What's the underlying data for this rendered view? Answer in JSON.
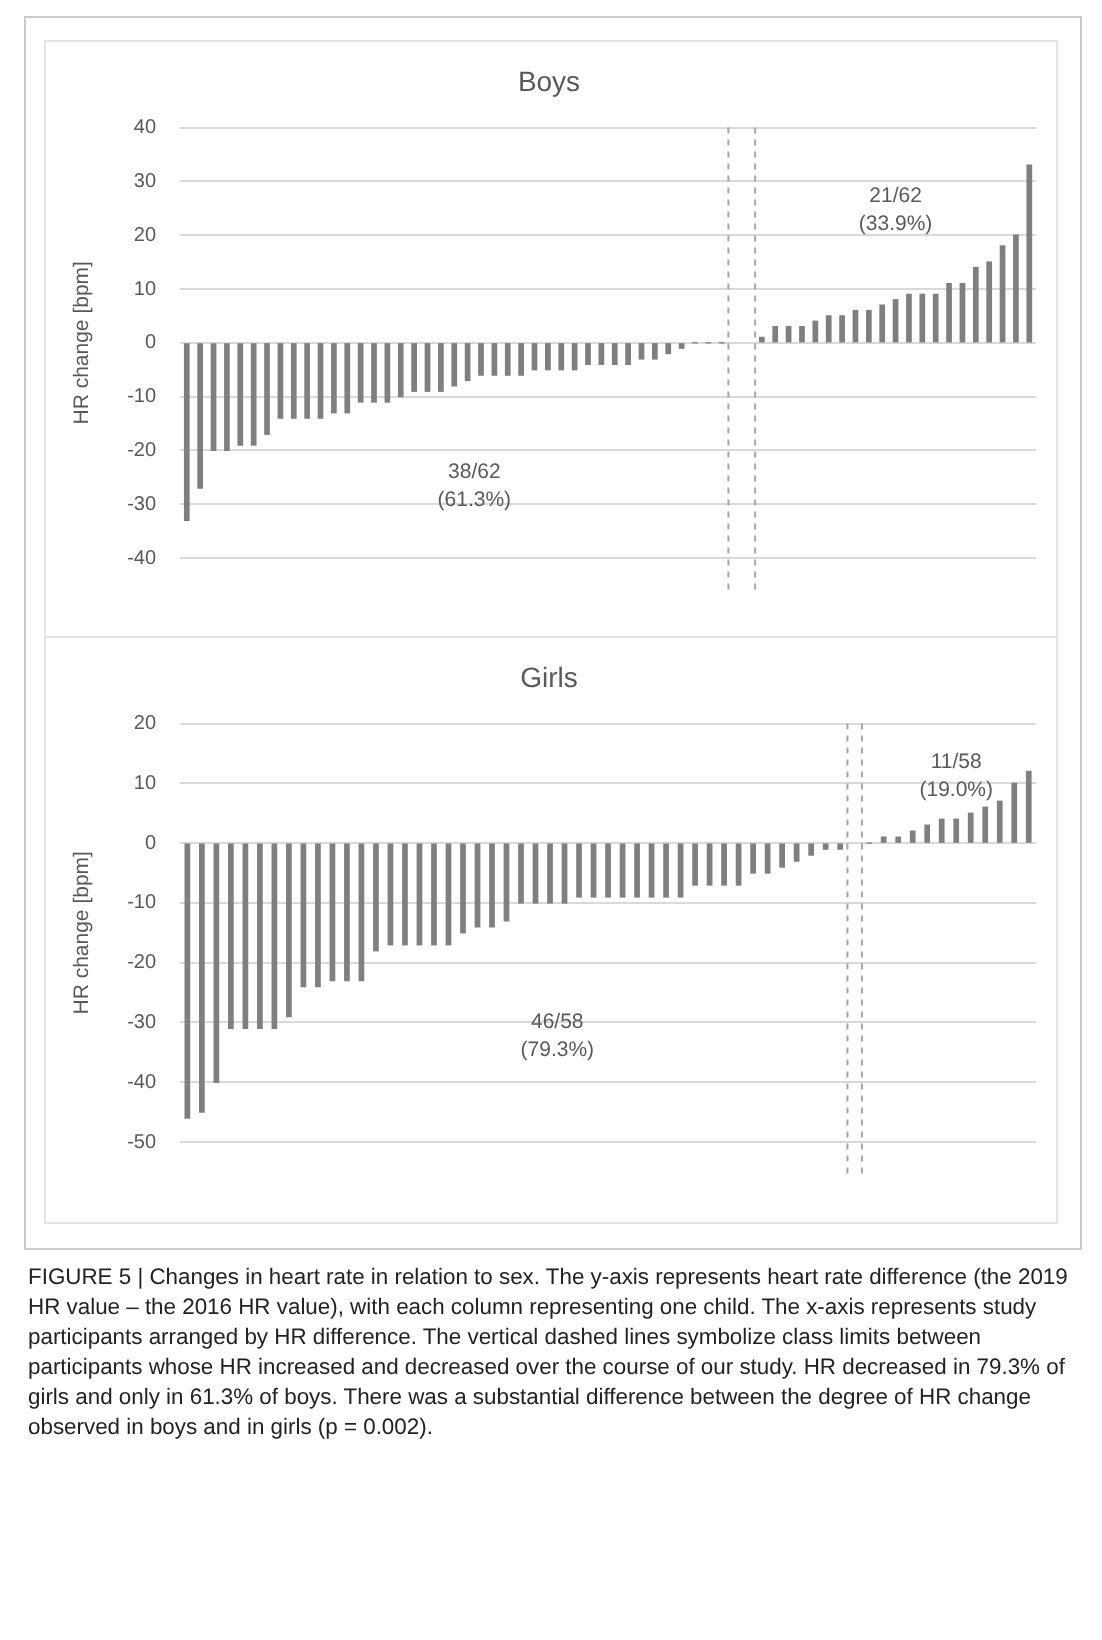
{
  "chart_data": [
    {
      "type": "bar",
      "title": "Boys",
      "ylabel": "HR change [bpm]",
      "color": "#7f7f7f",
      "tick_labels": "y",
      "grid": "y",
      "categories": [
        null,
        null,
        null,
        null,
        null,
        null,
        null,
        null,
        null,
        null,
        null,
        null,
        null,
        null,
        null,
        null,
        null,
        null,
        null,
        null,
        null,
        null,
        null,
        null,
        null,
        null,
        null,
        null,
        null,
        null,
        null,
        null,
        null,
        null,
        null,
        null,
        null,
        null,
        null,
        null,
        null,
        null,
        null,
        null,
        null,
        null,
        null,
        null,
        null,
        null,
        null,
        null,
        null,
        null,
        null,
        null,
        null,
        null,
        null,
        null,
        null,
        null,
        null,
        null
      ],
      "values": [
        -33,
        -27,
        -20,
        -20,
        -19,
        -19,
        -17,
        -14,
        -14,
        -14,
        -14,
        -13,
        -13,
        -11,
        -11,
        -11,
        -10,
        -9,
        -9,
        -9,
        -8,
        -7,
        -6,
        -6,
        -6,
        -6,
        -5,
        -5,
        -5,
        -5,
        -4,
        -4,
        -4,
        -4,
        -3,
        -3,
        -2,
        -1,
        0,
        0,
        0,
        null,
        null,
        1,
        3,
        3,
        3,
        4,
        5,
        5,
        6,
        6,
        7,
        8,
        9,
        9,
        9,
        11,
        11,
        14,
        15,
        18,
        20,
        33
      ],
      "ylim": [
        -40,
        40
      ],
      "yticks": [
        -40,
        -30,
        -20,
        -10,
        0,
        10,
        20,
        30,
        40
      ],
      "ref_lines": [
        {
          "axis": "x",
          "color": "#a6a6a6",
          "line_style": "dashed"
        },
        {
          "axis": "x",
          "color": "#a6a6a6",
          "line_style": "dashed"
        }
      ],
      "annotations": [
        "38/62\n(61.3%)",
        "21/62\n(33.9%)"
      ]
    },
    {
      "type": "bar",
      "title": "Girls",
      "ylabel": "HR change [bpm]",
      "color": "#7f7f7f",
      "tick_labels": "y",
      "grid": "y",
      "categories": [
        null,
        null,
        null,
        null,
        null,
        null,
        null,
        null,
        null,
        null,
        null,
        null,
        null,
        null,
        null,
        null,
        null,
        null,
        null,
        null,
        null,
        null,
        null,
        null,
        null,
        null,
        null,
        null,
        null,
        null,
        null,
        null,
        null,
        null,
        null,
        null,
        null,
        null,
        null,
        null,
        null,
        null,
        null,
        null,
        null,
        null,
        null,
        null,
        null,
        null,
        null,
        null,
        null,
        null,
        null,
        null,
        null,
        null,
        null
      ],
      "values": [
        -46,
        -45,
        -40,
        -31,
        -31,
        -31,
        -31,
        -29,
        -24,
        -24,
        -23,
        -23,
        -23,
        -18,
        -17,
        -17,
        -17,
        -17,
        -17,
        -15,
        -14,
        -14,
        -13,
        -10,
        -10,
        -10,
        -10,
        -9,
        -9,
        -9,
        -9,
        -9,
        -9,
        -9,
        -9,
        -7,
        -7,
        -7,
        -7,
        -5,
        -5,
        -4,
        -3,
        -2,
        -1,
        -1,
        null,
        0,
        1,
        1,
        2,
        3,
        4,
        4,
        5,
        6,
        7,
        10,
        12
      ],
      "ylim": [
        -50,
        20
      ],
      "yticks": [
        -50,
        -40,
        -30,
        -20,
        -10,
        0,
        10,
        20
      ],
      "ref_lines": [
        {
          "axis": "x",
          "color": "#a6a6a6",
          "line_style": "dashed"
        },
        {
          "axis": "x",
          "color": "#a6a6a6",
          "line_style": "dashed"
        }
      ],
      "annotations": [
        "46/58\n(79.3%)",
        "11/58\n(19.0%)",
        "FIGURE 5 | Changes in heart rate in relation to sex. The y-axis represents heart rate difference (the 2019 HR value – the 2016 HR value), with each column representing one child. The x-axis represents study participants arranged by HR difference. The vertical dashed lines symbolize class limits between participants whose HR increased and decreased over the course of our study. HR decreased in 79.3% of girls and only in 61.3% of boys. There was a substantial difference between the degree of HR change observed in boys and in girls (p = 0.002)."
      ]
    }
  ]
}
